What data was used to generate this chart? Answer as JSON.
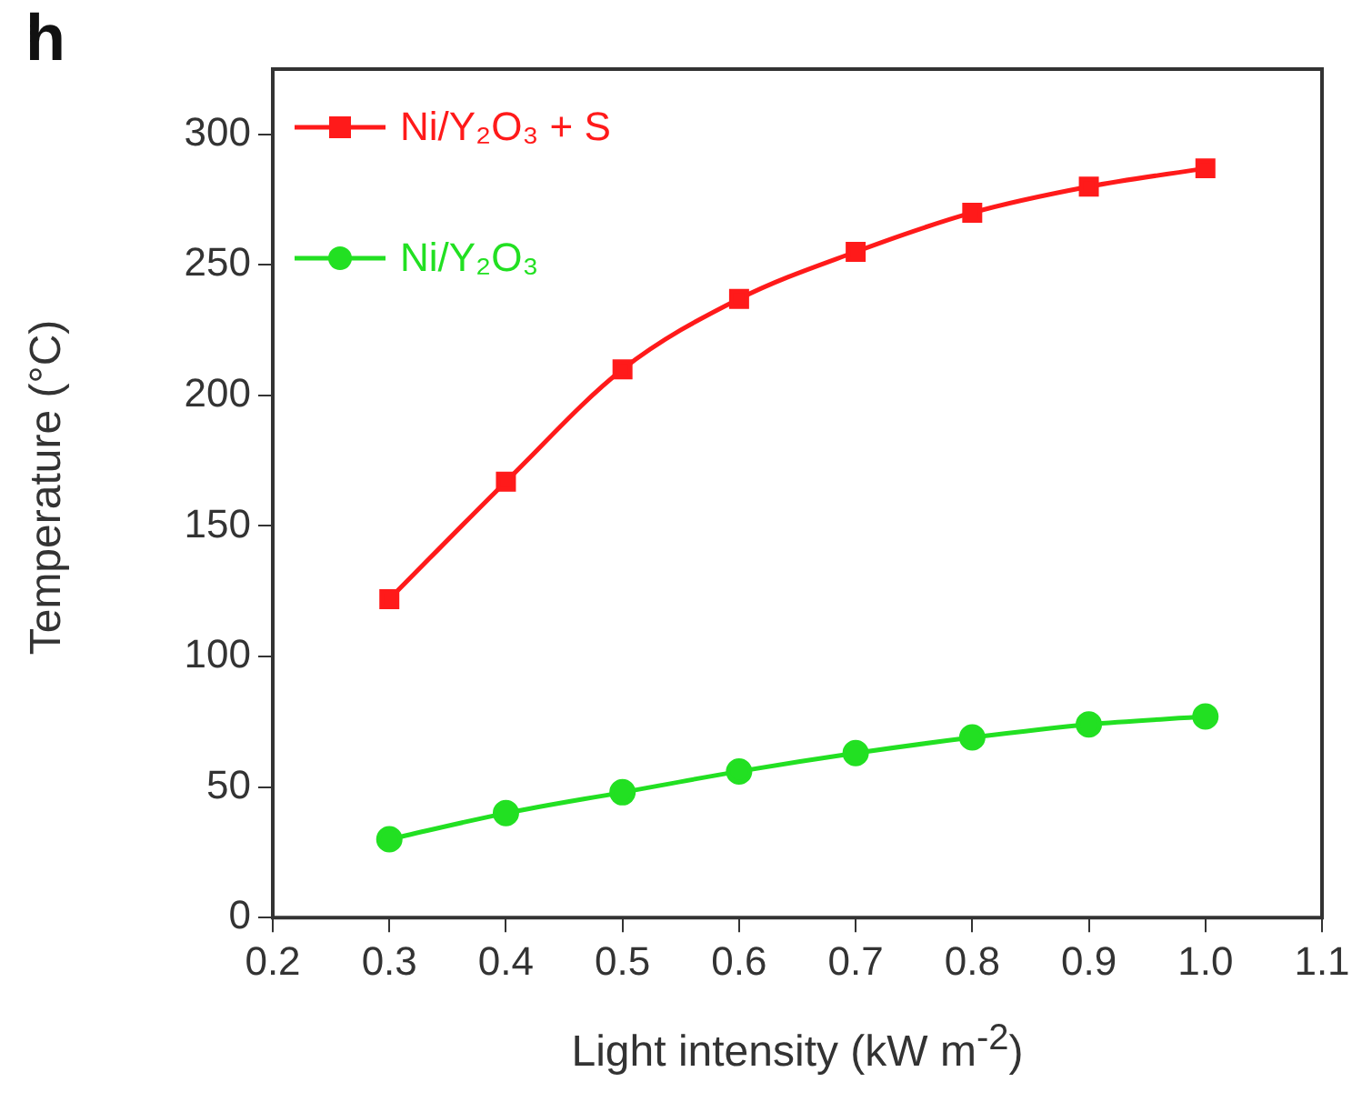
{
  "chart_data": {
    "type": "line",
    "annotations": [
      "h"
    ],
    "xlabel": "Light intensity (kW m$^{-2}$)",
    "ylabel": "Temperature (°C)",
    "x": [
      0.3,
      0.4,
      0.5,
      0.6,
      0.7,
      0.8,
      0.9,
      1.0
    ],
    "series": [
      {
        "name": "Ni/Y₂O₃ + S",
        "color": "#ff1a1a",
        "marker": "square",
        "values": [
          122,
          167,
          210,
          237,
          255,
          270,
          280,
          287
        ]
      },
      {
        "name": "Ni/Y₂O₃",
        "color": "#22e022",
        "marker": "circle",
        "values": [
          30,
          40,
          48,
          56,
          63,
          69,
          74,
          77
        ]
      }
    ],
    "xlim": [
      0.2,
      1.1
    ],
    "xticks": [
      0.2,
      0.3,
      0.4,
      0.5,
      0.6,
      0.7,
      0.8,
      0.9,
      {
        "value": 1,
        "label": "1.0"
      },
      1.1
    ],
    "ylim": [
      0,
      325
    ],
    "yticks": [
      0,
      50,
      100,
      150,
      200,
      250,
      300
    ],
    "grid": false,
    "legend": "top left",
    "line_style": "solid"
  }
}
